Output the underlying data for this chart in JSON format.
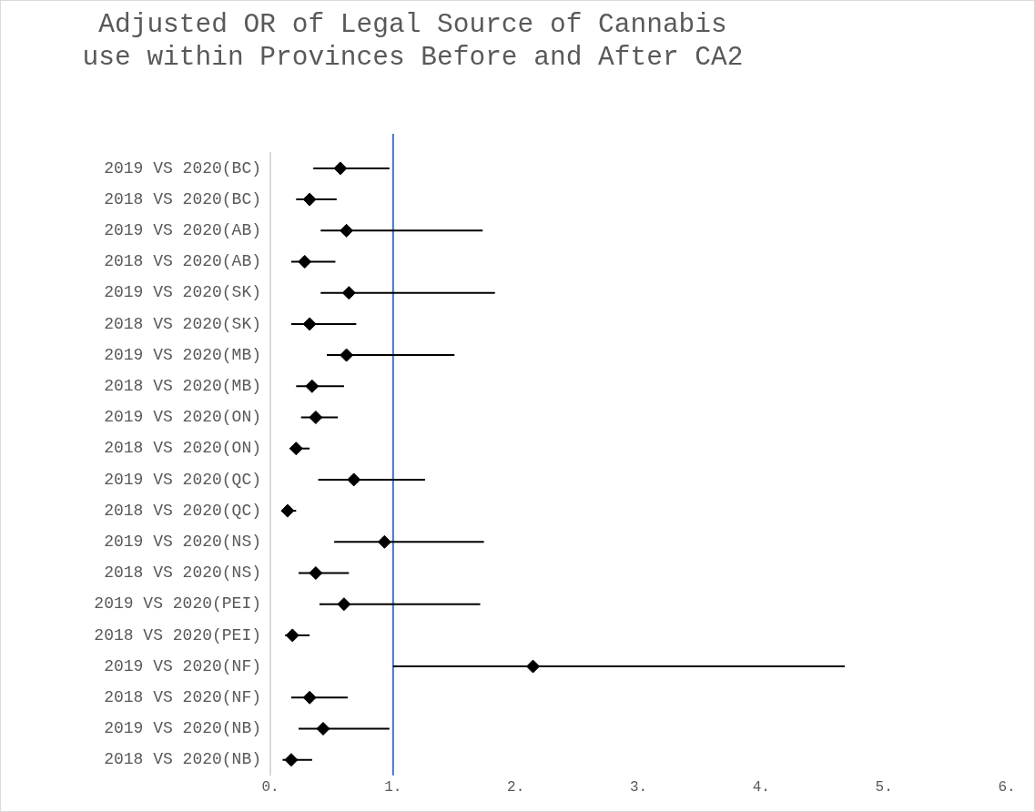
{
  "chart_data": {
    "type": "scatter",
    "title": "Adjusted OR of Legal Source of Cannabis use within Provinces Before and After CA2",
    "categories": [
      "2019 VS 2020(BC)",
      "2018 VS 2020(BC)",
      "2019 VS 2020(AB)",
      "2018 VS 2020(AB)",
      "2019 VS 2020(SK)",
      "2018 VS 2020(SK)",
      "2019 VS 2020(MB)",
      "2018 VS 2020(MB)",
      "2019 VS 2020(ON)",
      "2018 VS 2020(ON)",
      "2019 VS 2020(QC)",
      "2018 VS 2020(QC)",
      "2019 VS 2020(NS)",
      "2018 VS 2020(NS)",
      "2019 VS 2020(PEI)",
      "2018 VS 2020(PEI)",
      "2019 VS 2020(NF)",
      "2018 VS 2020(NF)",
      "2019 VS 2020(NB)",
      "2018 VS 2020(NB)"
    ],
    "orientation": "horizontal",
    "series": [
      {
        "color": "#000000",
        "values": [
          0.57,
          0.32,
          0.62,
          0.28,
          0.64,
          0.32,
          0.62,
          0.34,
          0.37,
          0.21,
          0.68,
          0.14,
          0.93,
          0.37,
          0.6,
          0.18,
          2.14,
          0.32,
          0.43,
          0.17
        ],
        "errors": [
          [
            0.35,
            0.97
          ],
          [
            0.21,
            0.54
          ],
          [
            0.41,
            1.73
          ],
          [
            0.17,
            0.53
          ],
          [
            0.41,
            1.83
          ],
          [
            0.17,
            0.7
          ],
          [
            0.46,
            1.5
          ],
          [
            0.21,
            0.6
          ],
          [
            0.25,
            0.55
          ],
          [
            0.16,
            0.32
          ],
          [
            0.39,
            1.26
          ],
          [
            0.09,
            0.21
          ],
          [
            0.52,
            1.74
          ],
          [
            0.23,
            0.64
          ],
          [
            0.4,
            1.71
          ],
          [
            0.12,
            0.32
          ],
          [
            1.0,
            4.68
          ],
          [
            0.17,
            0.63
          ],
          [
            0.23,
            0.97
          ],
          [
            0.1,
            0.34
          ]
        ]
      }
    ],
    "xlim": [
      0,
      6
    ],
    "xticks": [
      {
        "value": 0,
        "label": "0."
      },
      {
        "value": 1,
        "label": "1."
      },
      {
        "value": 2,
        "label": "2."
      },
      {
        "value": 3,
        "label": "3."
      },
      {
        "value": 4,
        "label": "4."
      },
      {
        "value": 5,
        "label": "5."
      },
      {
        "value": 6,
        "label": "6."
      }
    ],
    "ref_lines": [
      {
        "axis": "x",
        "value": 1,
        "color": "#4472c4"
      }
    ],
    "marker": "diamond",
    "grid": false,
    "legend": false
  }
}
